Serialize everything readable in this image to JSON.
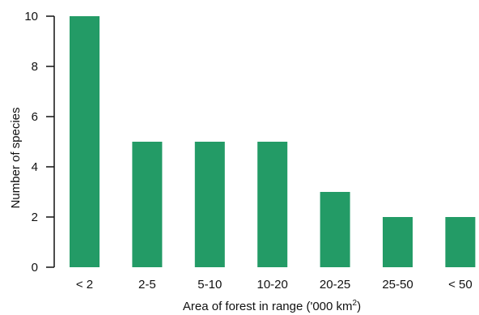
{
  "colors": {
    "bar": "#239b66",
    "axis": "#111111",
    "text": "#111111"
  },
  "chart_data": {
    "type": "bar",
    "title": "",
    "xlabel": "Area of forest in range ('000 km",
    "xlabel_superscript": "2",
    "xlabel_close": ")",
    "ylabel": "Number of species",
    "categories": [
      "< 2",
      "2-5",
      "5-10",
      "10-20",
      "20-25",
      "25-50",
      "< 50"
    ],
    "values": [
      10,
      5,
      5,
      5,
      3,
      2,
      2
    ],
    "ylim": [
      0,
      10
    ],
    "yticks": [
      0,
      2,
      4,
      6,
      8,
      10
    ],
    "grid": false,
    "legend": "none"
  }
}
